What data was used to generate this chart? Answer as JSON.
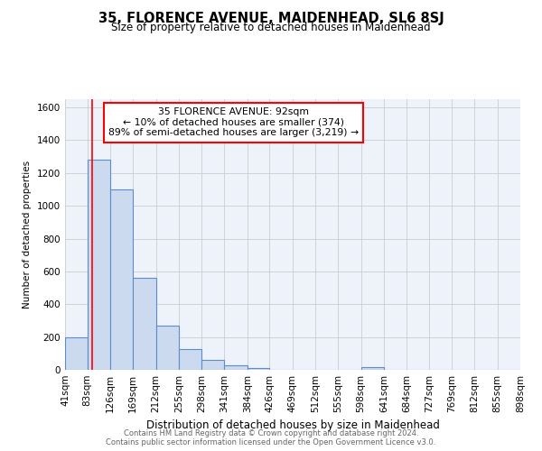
{
  "title": "35, FLORENCE AVENUE, MAIDENHEAD, SL6 8SJ",
  "subtitle": "Size of property relative to detached houses in Maidenhead",
  "xlabel": "Distribution of detached houses by size in Maidenhead",
  "ylabel": "Number of detached properties",
  "footnote1": "Contains HM Land Registry data © Crown copyright and database right 2024.",
  "footnote2": "Contains public sector information licensed under the Open Government Licence v3.0.",
  "annotation_line1": "35 FLORENCE AVENUE: 92sqm",
  "annotation_line2": "← 10% of detached houses are smaller (374)",
  "annotation_line3": "89% of semi-detached houses are larger (3,219) →",
  "bar_color": "#ccdaf0",
  "bar_edge_color": "#5b8dc8",
  "red_line_x": 92,
  "bin_edges": [
    41,
    83,
    126,
    169,
    212,
    255,
    298,
    341,
    384,
    426,
    469,
    512,
    555,
    598,
    641,
    684,
    727,
    769,
    812,
    855,
    898
  ],
  "bar_heights": [
    200,
    1280,
    1100,
    560,
    270,
    125,
    60,
    25,
    10,
    0,
    0,
    0,
    0,
    15,
    0,
    0,
    0,
    0,
    0,
    0
  ],
  "ylim": [
    0,
    1650
  ],
  "yticks": [
    0,
    200,
    400,
    600,
    800,
    1000,
    1200,
    1400,
    1600
  ],
  "xtick_labels": [
    "41sqm",
    "83sqm",
    "126sqm",
    "169sqm",
    "212sqm",
    "255sqm",
    "298sqm",
    "341sqm",
    "384sqm",
    "426sqm",
    "469sqm",
    "512sqm",
    "555sqm",
    "598sqm",
    "641sqm",
    "684sqm",
    "727sqm",
    "769sqm",
    "812sqm",
    "855sqm",
    "898sqm"
  ],
  "grid_color": "#cccccc",
  "bg_color": "#eef2fa"
}
